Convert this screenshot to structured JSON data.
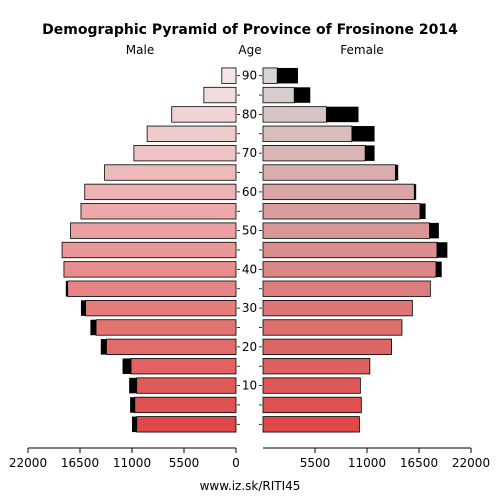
{
  "chart_data": {
    "type": "bar",
    "title": "Demographic Pyramid of Province of Frosinone 2014",
    "left_label": "Male",
    "center_label": "Age",
    "right_label": "Female",
    "footer": "www.iz.sk/RITI45",
    "age_groups": [
      "0-4",
      "5-9",
      "10-14",
      "15-19",
      "20-24",
      "25-29",
      "30-34",
      "35-39",
      "40-44",
      "45-49",
      "50-54",
      "55-59",
      "60-64",
      "65-69",
      "70-74",
      "75-79",
      "80-84",
      "85-89",
      "90+"
    ],
    "age_ticks": [
      10,
      20,
      30,
      40,
      50,
      60,
      70,
      80,
      90
    ],
    "x_ticks": [
      22000,
      16500,
      11000,
      5500,
      0,
      5500,
      11000,
      16500,
      22000
    ],
    "xlim": [
      0,
      22000
    ],
    "series": [
      {
        "name": "Male",
        "values": [
          10500,
          10700,
          10500,
          11100,
          13700,
          14800,
          15900,
          17800,
          18200,
          18400,
          17500,
          16400,
          16000,
          13900,
          10800,
          9400,
          6800,
          3400,
          1500
        ],
        "surplus": [
          500,
          500,
          800,
          900,
          600,
          600,
          500,
          200,
          0,
          0,
          0,
          0,
          0,
          0,
          0,
          0,
          0,
          0,
          0
        ]
      },
      {
        "name": "Female",
        "values": [
          10200,
          10400,
          10300,
          11300,
          13600,
          14700,
          15800,
          17700,
          18300,
          18400,
          17600,
          16600,
          16000,
          14000,
          10800,
          9400,
          6700,
          3300,
          1500
        ],
        "surplus": [
          0,
          0,
          0,
          0,
          0,
          0,
          0,
          0,
          600,
          1100,
          1000,
          600,
          200,
          300,
          1000,
          2400,
          3400,
          1700,
          2200
        ]
      }
    ]
  }
}
